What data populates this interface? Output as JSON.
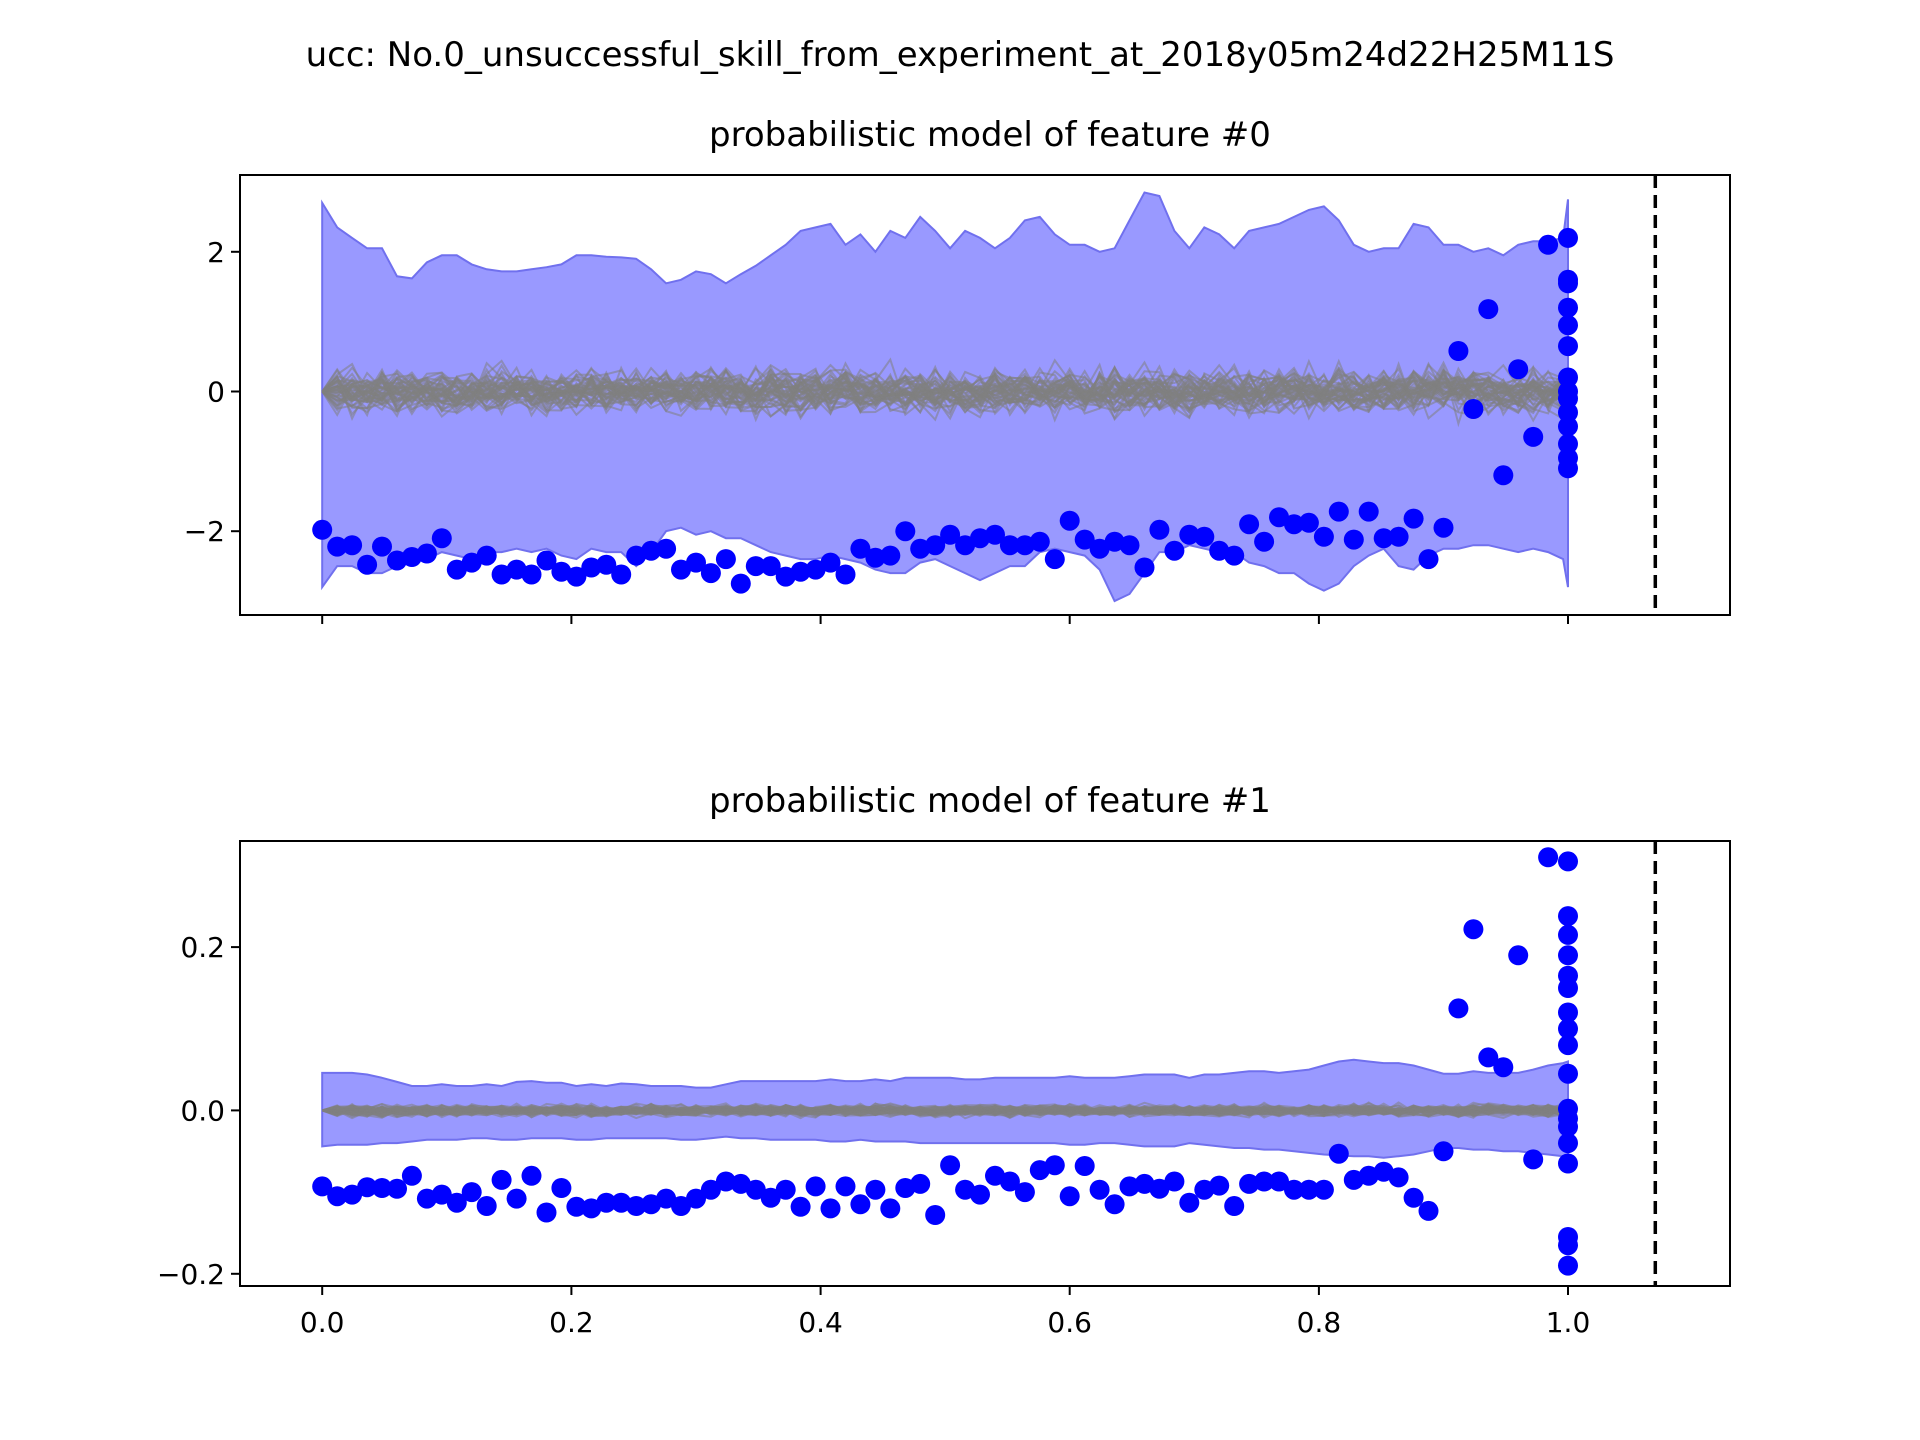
{
  "figure": {
    "suptitle": "ucc: No.0_unsuccessful_skill_from_experiment_at_2018y05m24d22H25M11S"
  },
  "colors": {
    "band_fill": "#9999ff",
    "band_edge": "#7070ee",
    "samples": "#808080",
    "points": "#0000ff",
    "threshold": "#000000"
  },
  "chart_data": [
    {
      "type": "scatter",
      "title": "probabilistic model of feature #0",
      "xlim": [
        -0.066,
        1.13
      ],
      "ylim": [
        -3.2,
        3.1
      ],
      "xticks": [
        0.0,
        0.2,
        0.4,
        0.6,
        0.8,
        1.0
      ],
      "xtick_labels": [],
      "yticks": [
        -2,
        0,
        2
      ],
      "ytick_labels": [
        "−2",
        "0",
        "2"
      ],
      "vline_x": 1.07,
      "band_x": [
        0.0,
        0.012,
        0.024,
        0.036,
        0.048,
        0.06,
        0.072,
        0.084,
        0.096,
        0.108,
        0.12,
        0.132,
        0.144,
        0.156,
        0.168,
        0.18,
        0.192,
        0.204,
        0.216,
        0.228,
        0.24,
        0.252,
        0.264,
        0.276,
        0.288,
        0.3,
        0.312,
        0.324,
        0.336,
        0.348,
        0.36,
        0.372,
        0.384,
        0.396,
        0.408,
        0.42,
        0.432,
        0.444,
        0.456,
        0.468,
        0.48,
        0.492,
        0.504,
        0.516,
        0.528,
        0.54,
        0.552,
        0.564,
        0.576,
        0.588,
        0.6,
        0.612,
        0.624,
        0.636,
        0.648,
        0.66,
        0.672,
        0.684,
        0.696,
        0.708,
        0.72,
        0.732,
        0.744,
        0.756,
        0.768,
        0.78,
        0.792,
        0.804,
        0.816,
        0.828,
        0.84,
        0.852,
        0.864,
        0.876,
        0.888,
        0.9,
        0.912,
        0.924,
        0.936,
        0.948,
        0.96,
        0.972,
        0.984,
        0.996,
        1.0
      ],
      "band_upper": [
        2.7,
        2.35,
        2.2,
        2.05,
        2.05,
        1.65,
        1.62,
        1.85,
        1.95,
        1.95,
        1.82,
        1.75,
        1.72,
        1.72,
        1.75,
        1.78,
        1.82,
        1.95,
        1.95,
        1.93,
        1.92,
        1.9,
        1.75,
        1.55,
        1.6,
        1.72,
        1.68,
        1.55,
        1.68,
        1.8,
        1.95,
        2.1,
        2.3,
        2.35,
        2.4,
        2.1,
        2.25,
        2.0,
        2.3,
        2.2,
        2.5,
        2.3,
        2.05,
        2.3,
        2.2,
        2.05,
        2.2,
        2.45,
        2.5,
        2.25,
        2.1,
        2.1,
        2.0,
        2.05,
        2.45,
        2.85,
        2.8,
        2.3,
        2.05,
        2.35,
        2.25,
        2.05,
        2.3,
        2.35,
        2.4,
        2.5,
        2.6,
        2.65,
        2.45,
        2.1,
        2.0,
        2.05,
        2.05,
        2.4,
        2.35,
        2.1,
        2.1,
        2.0,
        2.05,
        1.95,
        2.1,
        2.15,
        2.15,
        2.2,
        2.75
      ],
      "band_lower": [
        -2.8,
        -2.5,
        -2.5,
        -2.6,
        -2.6,
        -2.5,
        -2.35,
        -2.4,
        -2.3,
        -2.35,
        -2.4,
        -2.3,
        -2.3,
        -2.25,
        -2.3,
        -2.25,
        -2.35,
        -2.4,
        -2.25,
        -2.3,
        -2.3,
        -2.5,
        -2.3,
        -2.0,
        -1.95,
        -2.05,
        -2.0,
        -2.1,
        -2.1,
        -2.2,
        -2.3,
        -2.35,
        -2.4,
        -2.4,
        -2.35,
        -2.4,
        -2.45,
        -2.55,
        -2.6,
        -2.6,
        -2.45,
        -2.4,
        -2.5,
        -2.6,
        -2.7,
        -2.6,
        -2.5,
        -2.5,
        -2.3,
        -2.25,
        -2.3,
        -2.35,
        -2.55,
        -3.0,
        -2.9,
        -2.6,
        -2.3,
        -2.3,
        -2.2,
        -2.25,
        -2.3,
        -2.3,
        -2.45,
        -2.5,
        -2.6,
        -2.6,
        -2.75,
        -2.85,
        -2.75,
        -2.5,
        -2.35,
        -2.25,
        -2.5,
        -2.55,
        -2.35,
        -2.25,
        -2.25,
        -2.2,
        -2.2,
        -2.25,
        -2.3,
        -2.25,
        -2.3,
        -2.4,
        -2.8
      ],
      "points_x": [
        0.0,
        0.012,
        0.024,
        0.036,
        0.048,
        0.06,
        0.072,
        0.084,
        0.096,
        0.108,
        0.12,
        0.132,
        0.144,
        0.156,
        0.168,
        0.18,
        0.192,
        0.204,
        0.216,
        0.228,
        0.24,
        0.252,
        0.264,
        0.276,
        0.288,
        0.3,
        0.312,
        0.324,
        0.336,
        0.348,
        0.36,
        0.372,
        0.384,
        0.396,
        0.408,
        0.42,
        0.432,
        0.444,
        0.456,
        0.468,
        0.48,
        0.492,
        0.504,
        0.516,
        0.528,
        0.54,
        0.552,
        0.564,
        0.576,
        0.588,
        0.6,
        0.612,
        0.624,
        0.636,
        0.648,
        0.66,
        0.672,
        0.684,
        0.696,
        0.708,
        0.72,
        0.732,
        0.744,
        0.756,
        0.768,
        0.78,
        0.792,
        0.804,
        0.816,
        0.828,
        0.84,
        0.852,
        0.864,
        0.876,
        0.888,
        0.9,
        0.912,
        0.924,
        0.936,
        0.948,
        0.96,
        0.972,
        0.984,
        1.0,
        1.0,
        1.0,
        1.0,
        1.0,
        1.0,
        1.0,
        1.0,
        1.0,
        1.0,
        1.0,
        1.0,
        1.0,
        1.0
      ],
      "points_y": [
        -1.98,
        -2.22,
        -2.2,
        -2.48,
        -2.22,
        -2.42,
        -2.37,
        -2.32,
        -2.1,
        -2.55,
        -2.45,
        -2.35,
        -2.62,
        -2.55,
        -2.62,
        -2.42,
        -2.58,
        -2.65,
        -2.52,
        -2.48,
        -2.62,
        -2.35,
        -2.28,
        -2.25,
        -2.55,
        -2.45,
        -2.6,
        -2.4,
        -2.75,
        -2.5,
        -2.5,
        -2.65,
        -2.58,
        -2.55,
        -2.45,
        -2.62,
        -2.25,
        -2.38,
        -2.35,
        -2.0,
        -2.25,
        -2.2,
        -2.05,
        -2.2,
        -2.1,
        -2.05,
        -2.2,
        -2.2,
        -2.15,
        -2.4,
        -1.85,
        -2.12,
        -2.25,
        -2.15,
        -2.2,
        -2.52,
        -1.98,
        -2.28,
        -2.05,
        -2.08,
        -2.28,
        -2.35,
        -1.9,
        -2.15,
        -1.8,
        -1.9,
        -1.88,
        -2.08,
        -1.72,
        -2.12,
        -1.72,
        -2.1,
        -2.08,
        -1.82,
        -2.4,
        -1.95,
        0.58,
        -0.25,
        1.18,
        -1.2,
        0.32,
        -0.65,
        2.1,
        2.2,
        1.6,
        1.55,
        1.2,
        0.95,
        0.65,
        0.2,
        -0.1,
        -0.3,
        -0.5,
        -0.75,
        -0.95,
        -1.1,
        0.0
      ]
    },
    {
      "type": "scatter",
      "title": "probabilistic model of feature #1",
      "xlim": [
        -0.066,
        1.13
      ],
      "ylim": [
        -0.215,
        0.33
      ],
      "xticks": [
        0.0,
        0.2,
        0.4,
        0.6,
        0.8,
        1.0
      ],
      "xtick_labels": [
        "0.0",
        "0.2",
        "0.4",
        "0.6",
        "0.8",
        "1.0"
      ],
      "yticks": [
        -0.2,
        0.0,
        0.2
      ],
      "ytick_labels": [
        "−0.2",
        "0.0",
        "0.2"
      ],
      "vline_x": 1.07,
      "band_x": [
        0.0,
        0.012,
        0.024,
        0.036,
        0.048,
        0.06,
        0.072,
        0.084,
        0.096,
        0.108,
        0.12,
        0.132,
        0.144,
        0.156,
        0.168,
        0.18,
        0.192,
        0.204,
        0.216,
        0.228,
        0.24,
        0.252,
        0.264,
        0.276,
        0.288,
        0.3,
        0.312,
        0.324,
        0.336,
        0.348,
        0.36,
        0.372,
        0.384,
        0.396,
        0.408,
        0.42,
        0.432,
        0.444,
        0.456,
        0.468,
        0.48,
        0.492,
        0.504,
        0.516,
        0.528,
        0.54,
        0.552,
        0.564,
        0.576,
        0.588,
        0.6,
        0.612,
        0.624,
        0.636,
        0.648,
        0.66,
        0.672,
        0.684,
        0.696,
        0.708,
        0.72,
        0.732,
        0.744,
        0.756,
        0.768,
        0.78,
        0.792,
        0.804,
        0.816,
        0.828,
        0.84,
        0.852,
        0.864,
        0.876,
        0.888,
        0.9,
        0.912,
        0.924,
        0.936,
        0.948,
        0.96,
        0.972,
        0.984,
        0.996,
        1.0
      ],
      "band_upper": [
        0.046,
        0.046,
        0.046,
        0.044,
        0.04,
        0.035,
        0.03,
        0.03,
        0.032,
        0.03,
        0.03,
        0.032,
        0.03,
        0.035,
        0.036,
        0.034,
        0.034,
        0.03,
        0.032,
        0.03,
        0.033,
        0.032,
        0.03,
        0.03,
        0.03,
        0.028,
        0.028,
        0.032,
        0.036,
        0.036,
        0.036,
        0.036,
        0.036,
        0.036,
        0.038,
        0.036,
        0.036,
        0.038,
        0.036,
        0.04,
        0.04,
        0.04,
        0.04,
        0.038,
        0.038,
        0.04,
        0.04,
        0.04,
        0.04,
        0.04,
        0.042,
        0.04,
        0.04,
        0.04,
        0.042,
        0.044,
        0.044,
        0.044,
        0.04,
        0.044,
        0.044,
        0.046,
        0.048,
        0.048,
        0.046,
        0.048,
        0.05,
        0.055,
        0.06,
        0.062,
        0.06,
        0.058,
        0.058,
        0.055,
        0.05,
        0.045,
        0.045,
        0.048,
        0.046,
        0.046,
        0.046,
        0.05,
        0.055,
        0.058,
        0.06
      ],
      "band_lower": [
        -0.044,
        -0.042,
        -0.042,
        -0.042,
        -0.04,
        -0.04,
        -0.038,
        -0.036,
        -0.036,
        -0.036,
        -0.034,
        -0.034,
        -0.036,
        -0.036,
        -0.034,
        -0.034,
        -0.034,
        -0.036,
        -0.036,
        -0.034,
        -0.034,
        -0.034,
        -0.034,
        -0.034,
        -0.036,
        -0.036,
        -0.034,
        -0.032,
        -0.034,
        -0.034,
        -0.036,
        -0.036,
        -0.036,
        -0.036,
        -0.038,
        -0.038,
        -0.036,
        -0.038,
        -0.038,
        -0.038,
        -0.04,
        -0.04,
        -0.04,
        -0.04,
        -0.04,
        -0.04,
        -0.04,
        -0.04,
        -0.04,
        -0.04,
        -0.042,
        -0.042,
        -0.04,
        -0.04,
        -0.042,
        -0.044,
        -0.044,
        -0.044,
        -0.04,
        -0.042,
        -0.044,
        -0.046,
        -0.046,
        -0.048,
        -0.048,
        -0.05,
        -0.052,
        -0.054,
        -0.055,
        -0.056,
        -0.056,
        -0.058,
        -0.056,
        -0.054,
        -0.05,
        -0.046,
        -0.046,
        -0.048,
        -0.048,
        -0.05,
        -0.05,
        -0.052,
        -0.054,
        -0.056,
        -0.058
      ],
      "points_x": [
        0.0,
        0.012,
        0.024,
        0.036,
        0.048,
        0.06,
        0.072,
        0.084,
        0.096,
        0.108,
        0.12,
        0.132,
        0.144,
        0.156,
        0.168,
        0.18,
        0.192,
        0.204,
        0.216,
        0.228,
        0.24,
        0.252,
        0.264,
        0.276,
        0.288,
        0.3,
        0.312,
        0.324,
        0.336,
        0.348,
        0.36,
        0.372,
        0.384,
        0.396,
        0.408,
        0.42,
        0.432,
        0.444,
        0.456,
        0.468,
        0.48,
        0.492,
        0.504,
        0.516,
        0.528,
        0.54,
        0.552,
        0.564,
        0.576,
        0.588,
        0.6,
        0.612,
        0.624,
        0.636,
        0.648,
        0.66,
        0.672,
        0.684,
        0.696,
        0.708,
        0.72,
        0.732,
        0.744,
        0.756,
        0.768,
        0.78,
        0.792,
        0.804,
        0.816,
        0.828,
        0.84,
        0.852,
        0.864,
        0.876,
        0.888,
        0.9,
        0.912,
        0.924,
        0.936,
        0.948,
        0.96,
        0.972,
        0.984,
        1.0,
        1.0,
        1.0,
        1.0,
        1.0,
        1.0,
        1.0,
        1.0,
        1.0,
        1.0,
        1.0,
        1.0,
        1.0,
        1.0,
        1.0,
        1.0,
        1.0,
        1.0
      ],
      "points_y": [
        -0.093,
        -0.105,
        -0.103,
        -0.094,
        -0.095,
        -0.096,
        -0.08,
        -0.108,
        -0.103,
        -0.113,
        -0.1,
        -0.117,
        -0.085,
        -0.108,
        -0.08,
        -0.125,
        -0.095,
        -0.118,
        -0.12,
        -0.113,
        -0.113,
        -0.117,
        -0.115,
        -0.108,
        -0.117,
        -0.108,
        -0.097,
        -0.087,
        -0.09,
        -0.097,
        -0.107,
        -0.097,
        -0.118,
        -0.093,
        -0.12,
        -0.093,
        -0.115,
        -0.097,
        -0.12,
        -0.095,
        -0.09,
        -0.128,
        -0.067,
        -0.097,
        -0.103,
        -0.08,
        -0.087,
        -0.1,
        -0.073,
        -0.067,
        -0.105,
        -0.068,
        -0.097,
        -0.115,
        -0.093,
        -0.09,
        -0.096,
        -0.087,
        -0.113,
        -0.097,
        -0.092,
        -0.117,
        -0.09,
        -0.087,
        -0.087,
        -0.097,
        -0.097,
        -0.097,
        -0.053,
        -0.085,
        -0.08,
        -0.075,
        -0.082,
        -0.107,
        -0.123,
        -0.05,
        0.125,
        0.222,
        0.065,
        0.053,
        0.19,
        -0.06,
        0.31,
        0.305,
        0.238,
        0.215,
        0.19,
        0.165,
        0.15,
        0.12,
        0.1,
        0.08,
        0.045,
        0.002,
        -0.02,
        -0.04,
        -0.065,
        -0.155,
        -0.165,
        -0.19,
        -0.01
      ]
    }
  ]
}
